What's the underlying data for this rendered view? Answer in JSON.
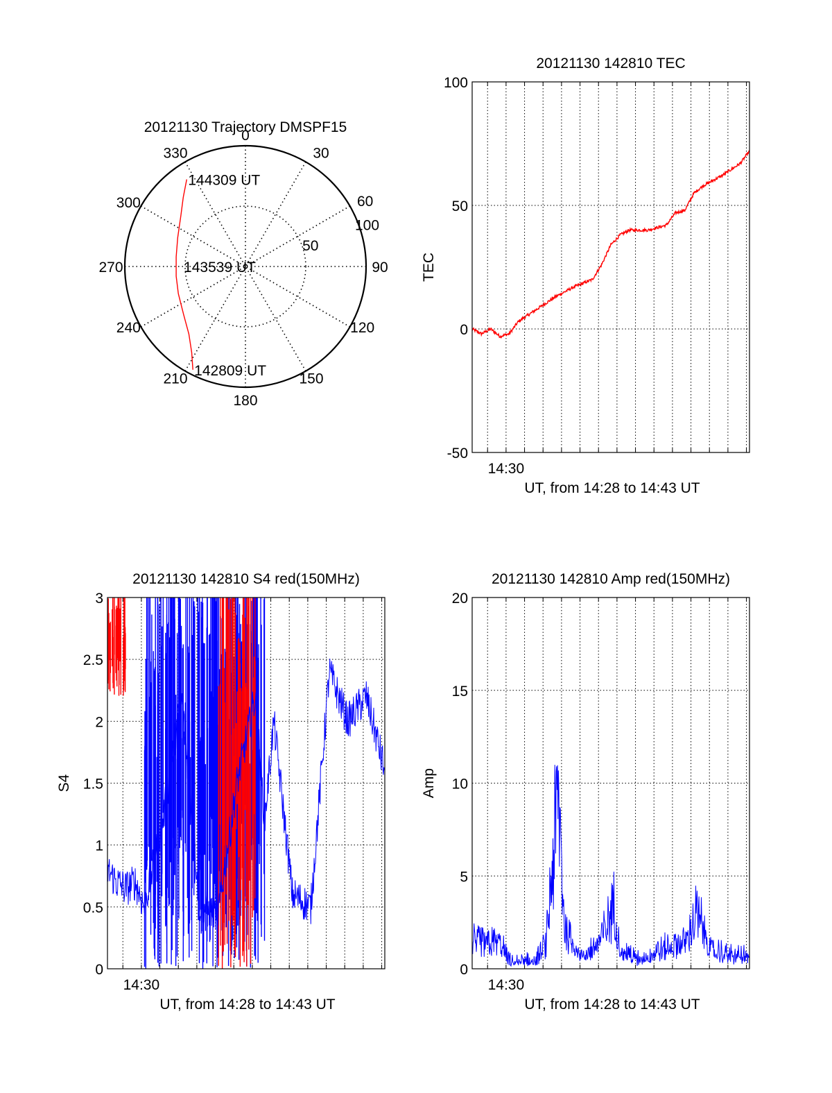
{
  "chart_data": [
    {
      "id": "trajectory",
      "type": "polar-line",
      "title": "20121130 Trajectory DMSPF15",
      "angle_labels": [
        "0",
        "30",
        "60",
        "90",
        "120",
        "150",
        "180",
        "210",
        "240",
        "270",
        "300",
        "330"
      ],
      "radial_labels": [
        "50",
        "100"
      ],
      "radial_max": 100,
      "radial_rings": [
        50,
        100
      ],
      "series": [
        {
          "color": "#ff0000",
          "points": [
            {
              "azimuth": 207,
              "radius": 96
            },
            {
              "azimuth": 212,
              "radius": 84
            },
            {
              "azimuth": 220,
              "radius": 73
            },
            {
              "azimuth": 232,
              "radius": 65
            },
            {
              "azimuth": 248,
              "radius": 60
            },
            {
              "azimuth": 262,
              "radius": 58
            },
            {
              "azimuth": 278,
              "radius": 58
            },
            {
              "azimuth": 293,
              "radius": 61
            },
            {
              "azimuth": 308,
              "radius": 68
            },
            {
              "azimuth": 318,
              "radius": 77
            },
            {
              "azimuth": 326,
              "radius": 87
            }
          ]
        }
      ],
      "annotations": [
        {
          "text": "144309 UT",
          "azimuth": 326,
          "radius": 87
        },
        {
          "text": "143539 UT",
          "azimuth": 270,
          "radius": 0
        },
        {
          "text": "142809 UT",
          "azimuth": 207,
          "radius": 96
        }
      ]
    },
    {
      "id": "tec",
      "type": "line",
      "title": "20121130 142810 TEC",
      "xlabel": "UT, from 14:28 to 14:43 UT",
      "ylabel": "TEC",
      "x_tick_labels": [
        "14:30"
      ],
      "xlim": [
        "14:28:10",
        "14:43:10"
      ],
      "ylim": [
        -50,
        100
      ],
      "y_ticks": [
        -50,
        0,
        50,
        100
      ],
      "grid": true,
      "series": [
        {
          "color": "#ff0000",
          "x": [
            "14:28:10",
            "14:28:40",
            "14:29:10",
            "14:29:40",
            "14:30:10",
            "14:30:40",
            "14:31:40",
            "14:32:40",
            "14:33:40",
            "14:34:40",
            "14:35:10",
            "14:35:40",
            "14:36:10",
            "14:36:40",
            "14:37:40",
            "14:38:40",
            "14:39:10",
            "14:39:40",
            "14:40:10",
            "14:40:40",
            "14:41:40",
            "14:42:40",
            "14:43:10"
          ],
          "y": [
            0,
            -2,
            0,
            -3,
            -2,
            3,
            8,
            13,
            17,
            20,
            26,
            34,
            38,
            40,
            40,
            42,
            47,
            48,
            55,
            58,
            62,
            67,
            72
          ]
        }
      ]
    },
    {
      "id": "s4",
      "type": "line",
      "title": "20121130 142810 S4 red(150MHz)",
      "xlabel": "UT, from 14:28 to 14:43 UT",
      "ylabel": "S4",
      "x_tick_labels": [
        "14:30"
      ],
      "xlim": [
        "14:28:10",
        "14:43:10"
      ],
      "ylim": [
        0,
        3
      ],
      "y_ticks": [
        0,
        0.5,
        1,
        1.5,
        2,
        2.5,
        3
      ],
      "y_tick_labels": [
        "0",
        "0.5",
        "1",
        "1.5",
        "2",
        "2.5",
        "3"
      ],
      "grid": true,
      "series": [
        {
          "color": "#0000ff",
          "x": [
            "14:28:10",
            "14:28:40",
            "14:29:10",
            "14:29:40",
            "14:30:10",
            "14:31:10",
            "14:32:10",
            "14:33:10",
            "14:34:10",
            "14:35:10",
            "14:36:10",
            "14:36:40",
            "14:37:10",
            "14:38:10",
            "14:39:10",
            "14:40:10",
            "14:41:10",
            "14:42:10",
            "14:43:10"
          ],
          "y": [
            0.8,
            0.7,
            0.65,
            0.7,
            0.5,
            1.2,
            2.2,
            0.5,
            0.45,
            1.5,
            2.2,
            1.2,
            2.0,
            0.6,
            0.5,
            2.4,
            2.0,
            2.2,
            1.6
          ]
        }
      ],
      "dense_bands": [
        {
          "color": "#0000ff",
          "from": "14:30:10",
          "to": "14:36:40",
          "y_min": 0,
          "y_max": 3
        },
        {
          "color": "#ff0000",
          "from": "14:34:10",
          "to": "14:36:10",
          "y_min": 0,
          "y_max": 3
        },
        {
          "color": "#ff0000",
          "from": "14:28:10",
          "to": "14:29:10",
          "y_min": 2.2,
          "y_max": 3
        }
      ]
    },
    {
      "id": "amp",
      "type": "line",
      "title": "20121130 142810 Amp red(150MHz)",
      "xlabel": "UT, from 14:28 to 14:43 UT",
      "ylabel": "Amp",
      "x_tick_labels": [
        "14:30"
      ],
      "xlim": [
        "14:28:10",
        "14:43:10"
      ],
      "ylim": [
        0,
        20
      ],
      "y_ticks": [
        0,
        5,
        10,
        15,
        20
      ],
      "grid": true,
      "series": [
        {
          "color": "#0000ff",
          "x": [
            "14:28:10",
            "14:29:40",
            "14:30:10",
            "14:31:40",
            "14:32:10",
            "14:32:50",
            "14:33:10",
            "14:34:10",
            "14:35:10",
            "14:35:50",
            "14:36:10",
            "14:37:10",
            "14:38:10",
            "14:39:40",
            "14:40:20",
            "14:41:10",
            "14:42:10",
            "14:43:10"
          ],
          "y": [
            1.5,
            1.6,
            0.4,
            0.5,
            1.5,
            10.2,
            2.5,
            0.6,
            1.8,
            3.8,
            1.2,
            0.5,
            1.0,
            1.6,
            3.2,
            1.0,
            0.8,
            0.7
          ]
        }
      ]
    }
  ]
}
